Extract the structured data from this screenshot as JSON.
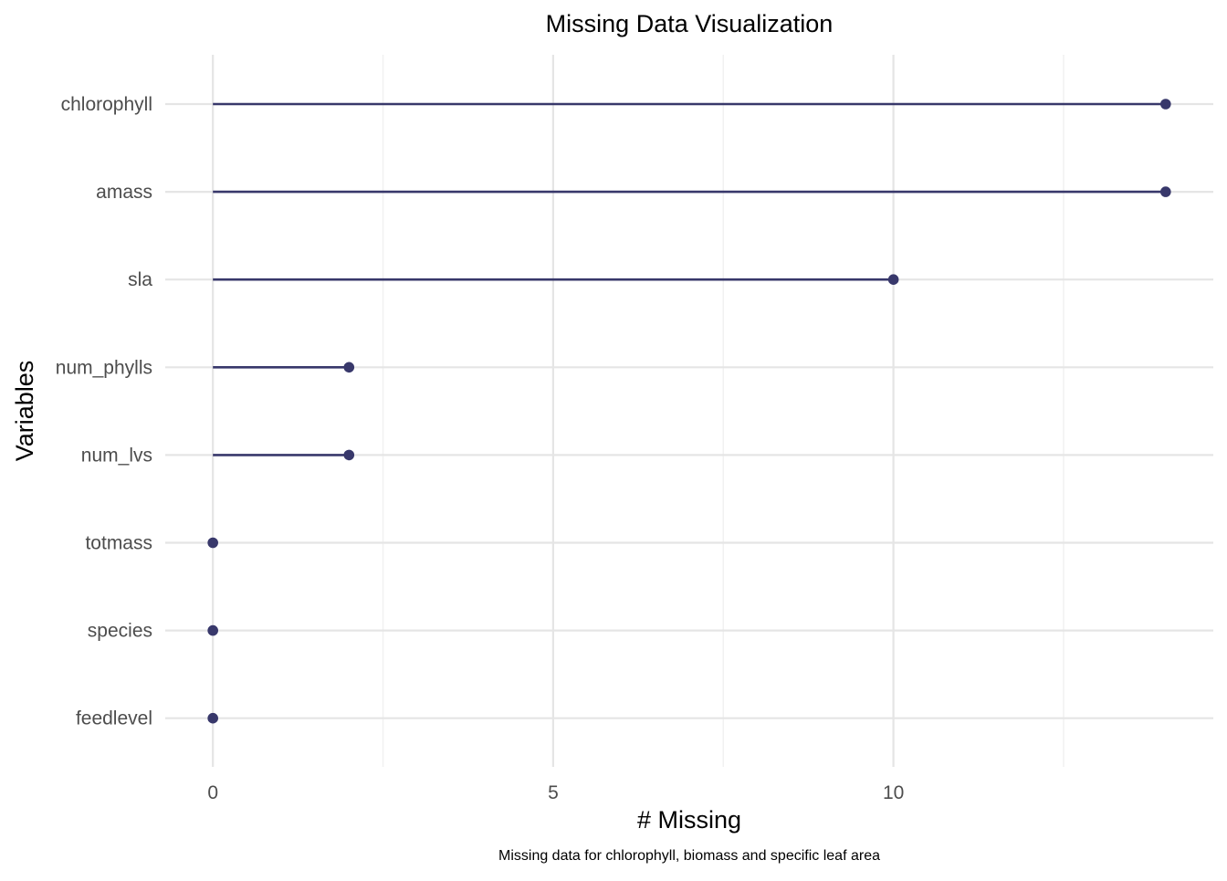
{
  "chart_data": {
    "type": "lollipop",
    "title": "Missing Data Visualization",
    "xlabel": "# Missing",
    "ylabel": "Variables",
    "caption": "Missing data for chlorophyll, biomass and specific leaf area",
    "categories": [
      "chlorophyll",
      "amass",
      "sla",
      "num_phylls",
      "num_lvs",
      "totmass",
      "species",
      "feedlevel"
    ],
    "values": [
      14,
      14,
      10,
      2,
      2,
      0,
      0,
      0
    ],
    "xlim": [
      -0.7,
      14.7
    ],
    "x_ticks": [
      0,
      5,
      10
    ],
    "x_minor_ticks": [
      2.5,
      7.5,
      12.5
    ],
    "grid": true,
    "legend": "none",
    "colors": {
      "series": "#38386b",
      "grid_major": "#e5e5e5",
      "grid_minor": "#f1f1f1",
      "text": "#000000",
      "tick_text": "#4d4d4d"
    }
  }
}
